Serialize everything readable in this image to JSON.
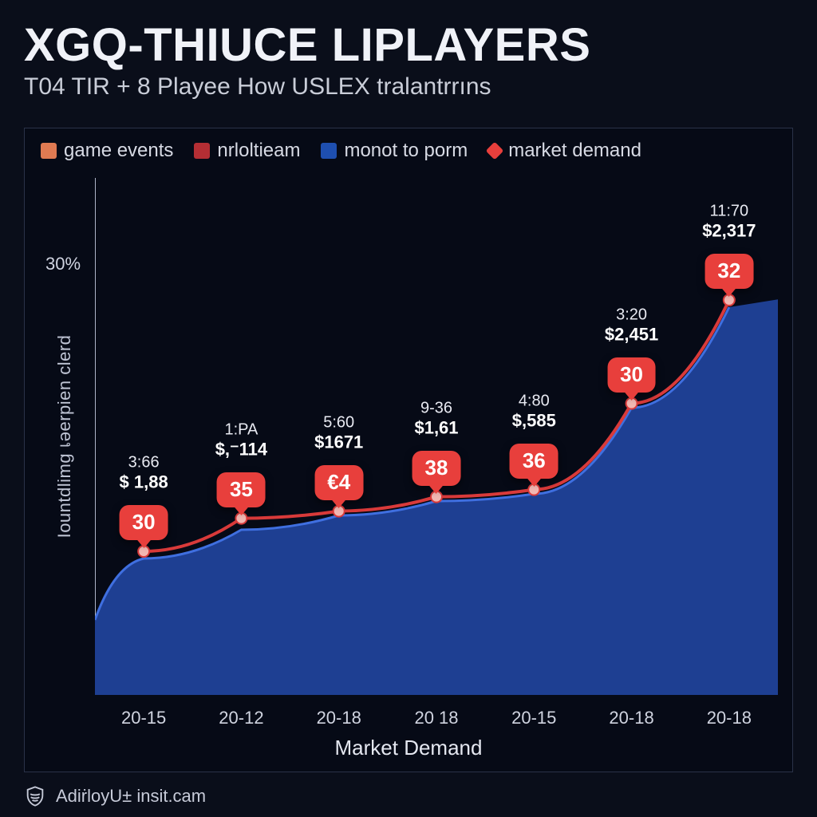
{
  "header": {
    "title": "XGQ-THIUCE LIPLAYERS",
    "subtitle": "T04 TIR + 8 Playee How USLEX tralantrrıns"
  },
  "legend": [
    {
      "label": "game events",
      "color": "#e07a52",
      "shape": "square"
    },
    {
      "label": "nrloltieam",
      "color": "#b42e34",
      "shape": "square"
    },
    {
      "label": "monot to porm",
      "color": "#1e4fb0",
      "shape": "square"
    },
    {
      "label": "market demand",
      "color": "#e83f3c",
      "shape": "diamond"
    }
  ],
  "chart": {
    "type": "area-with-markers",
    "background_color": "#060a16",
    "frame_border_color": "#2a3248",
    "area_fill": "#1e3f92",
    "area_stroke": "#3f6fe0",
    "area_stroke_width": 3,
    "line_color": "#d93a3a",
    "line_width": 4,
    "marker_color": "#f2b7b2",
    "marker_stroke": "#d93a3a",
    "marker_radius": 7,
    "axis_color": "#aeb4c8",
    "axis_width": 2,
    "x_label": "Market Demand",
    "y_label": "Iountdlimg เәerpien clerd",
    "y_ticks": [
      {
        "value": 30,
        "label": "30%"
      }
    ],
    "ylim": [
      0,
      36
    ],
    "x_categories": [
      "20-15",
      "20-12",
      "20-18",
      "20 18",
      "20-15",
      "20-18",
      "20-18"
    ],
    "series_area_y": [
      9.5,
      11.5,
      12.5,
      13.5,
      14.0,
      20.0,
      27.0
    ],
    "series_line_y": [
      10.0,
      12.3,
      12.8,
      13.8,
      14.3,
      20.3,
      27.5
    ],
    "badges": [
      "30",
      "35",
      "€4",
      "38",
      "36",
      "30",
      "32"
    ],
    "badge_bg": "#e83f3c",
    "badge_text_color": "#ffffff",
    "badge_fontsize": 26,
    "annotations": [
      {
        "line1": "3:66",
        "line2": "$ 1,88"
      },
      {
        "line1": "1:PA",
        "line2": "$,⁻114"
      },
      {
        "line1": "5:60",
        "line2": "$1671"
      },
      {
        "line1": "9-36",
        "line2": "$1,61"
      },
      {
        "line1": "4:80",
        "line2": "$,585"
      },
      {
        "line1": "3:20",
        "line2": "$2,451"
      },
      {
        "line1": "11:70",
        "line2": "$2,317"
      }
    ],
    "annot_line1_color": "#e8eaf2",
    "annot_line2_color": "#ffffff",
    "annot_fontsize_line1": 20,
    "annot_fontsize_line2": 22
  },
  "footer": {
    "text": "AdiṙloyU± insit.cam",
    "icon": "shield-icon",
    "icon_color": "#c6cad8"
  }
}
